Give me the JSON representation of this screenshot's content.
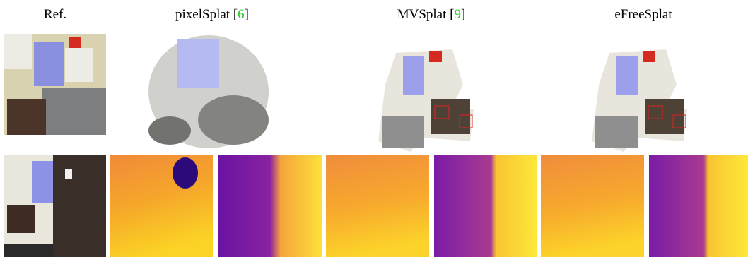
{
  "figure": {
    "columns": [
      {
        "label": "Ref."
      },
      {
        "label": "pixelSplat [",
        "citation": "6",
        "label_end": "]"
      },
      {
        "label": "MVSplat [",
        "citation": "9",
        "label_end": "]"
      },
      {
        "label": "eFreeSplat"
      }
    ]
  }
}
